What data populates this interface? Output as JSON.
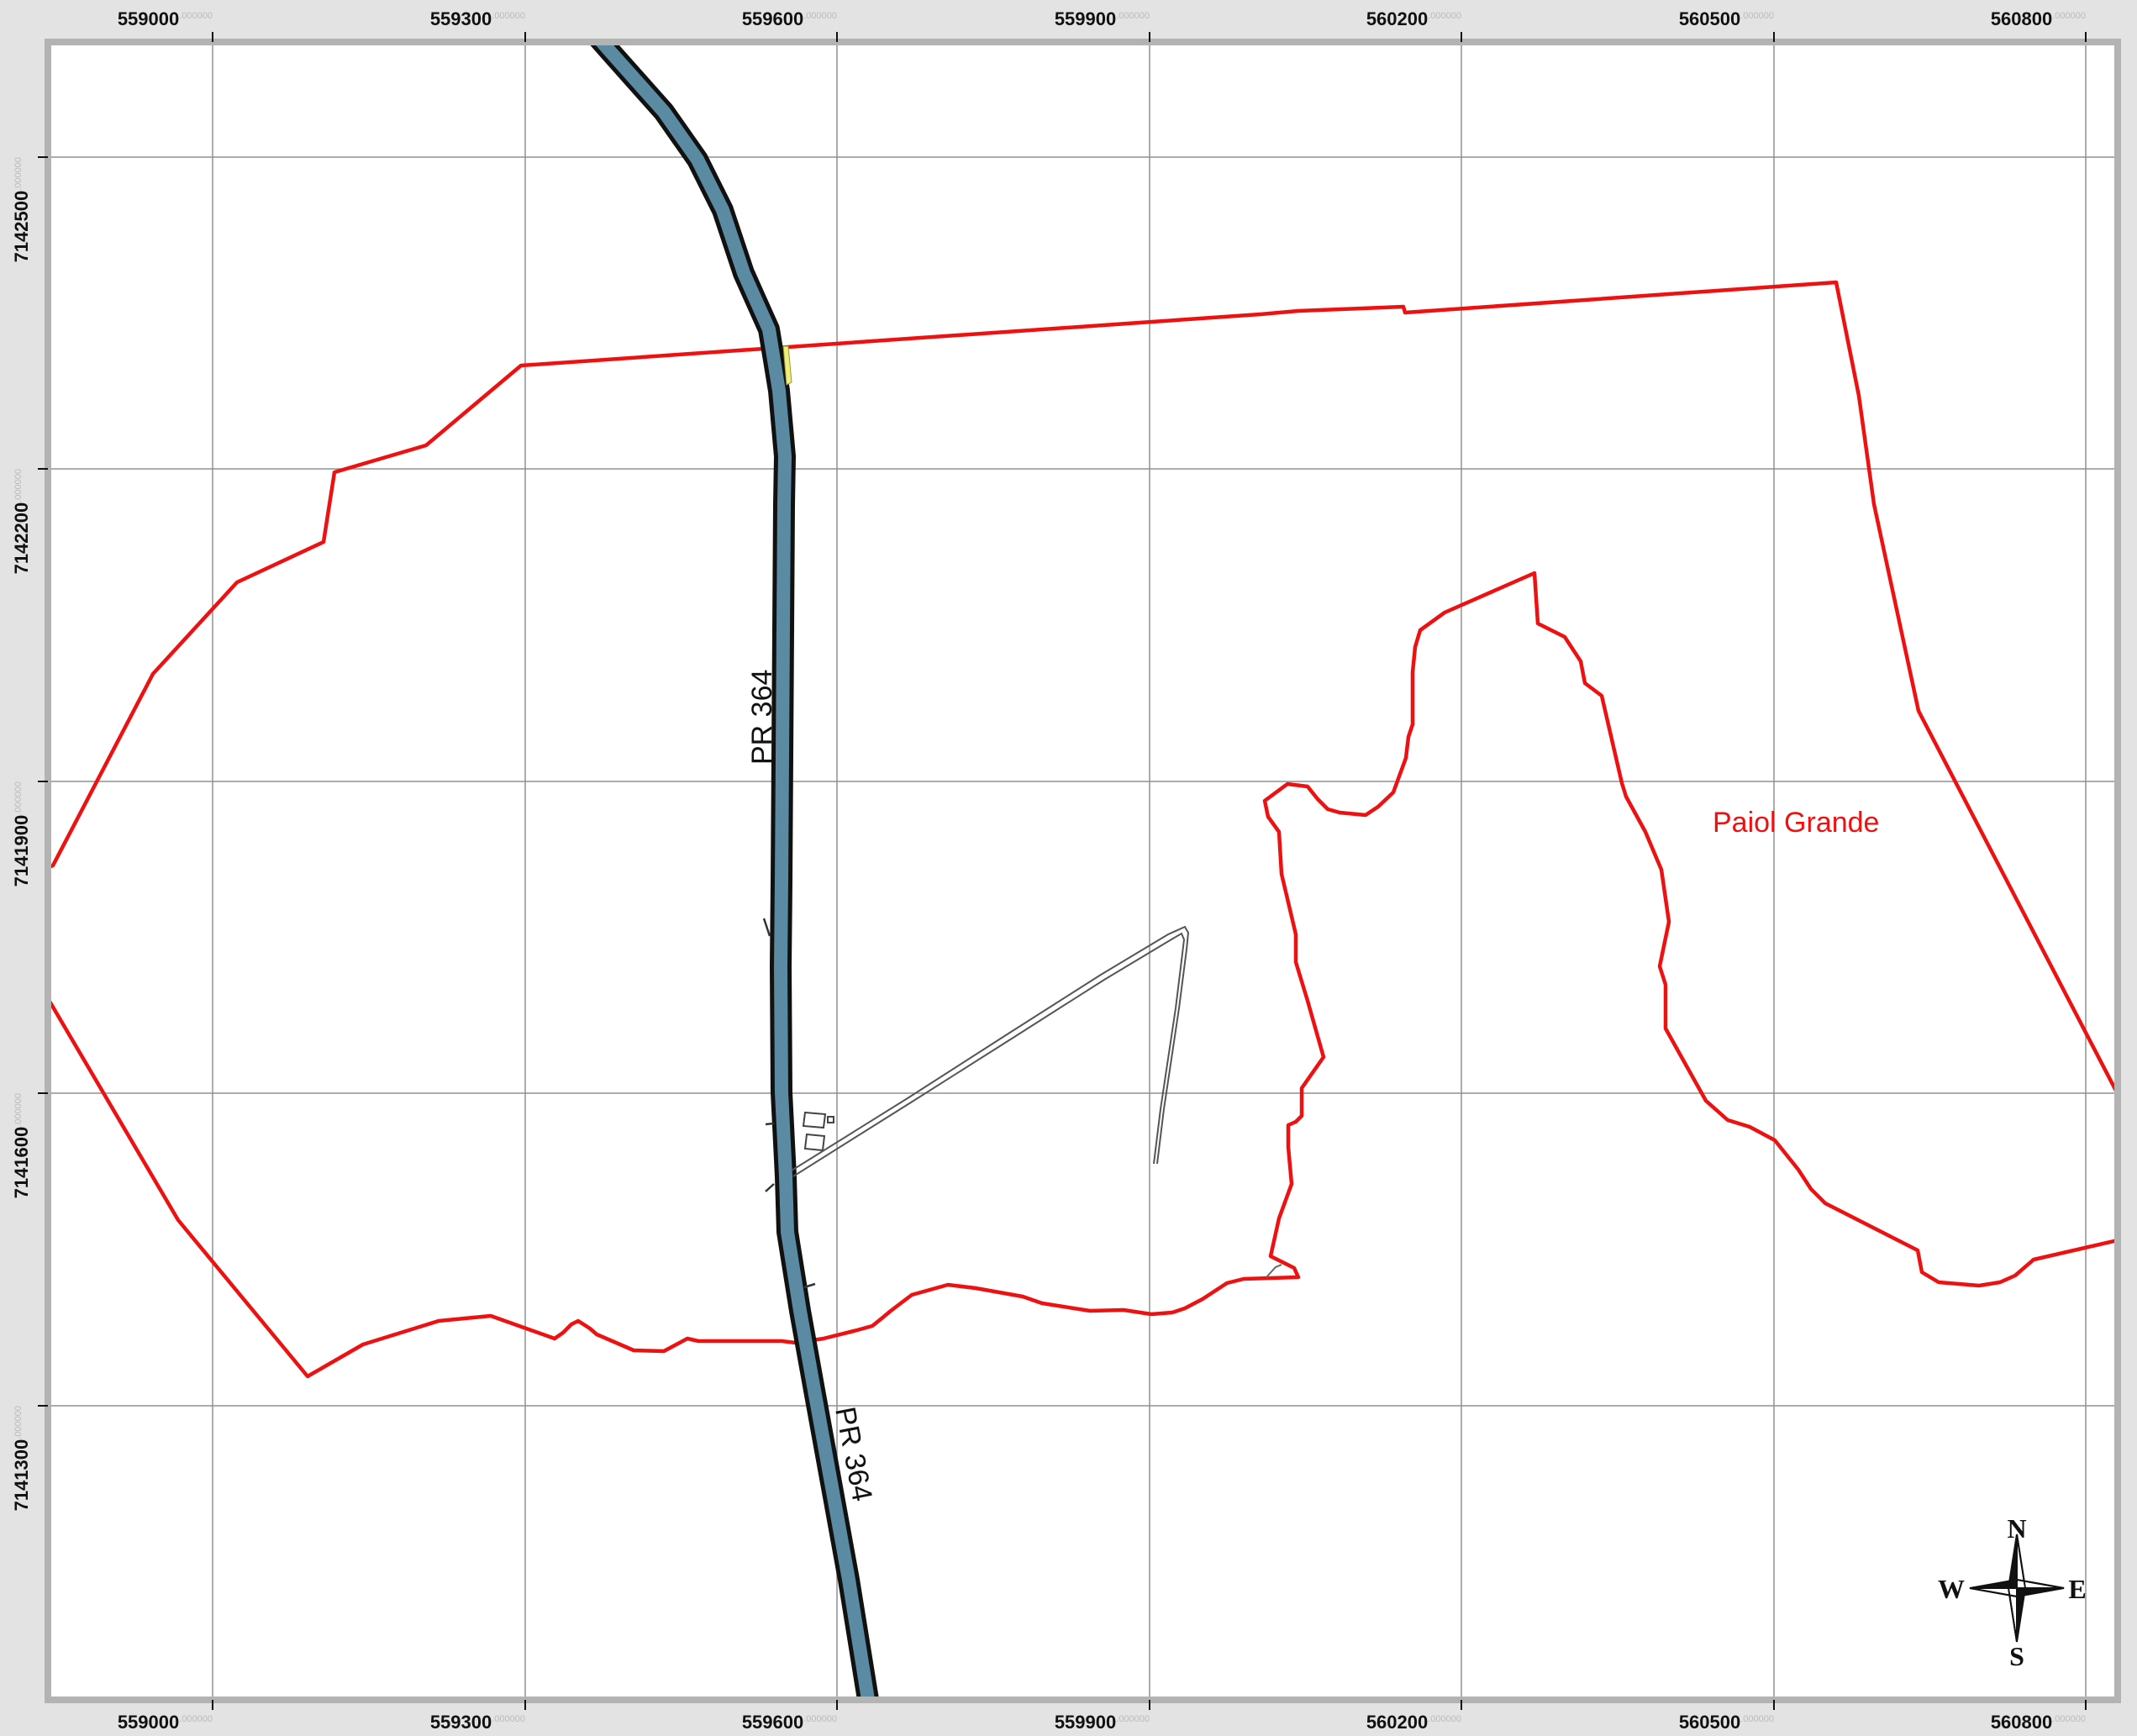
{
  "map": {
    "grid_x": [
      {
        "main": "559000",
        "dec": ".000000"
      },
      {
        "main": "559300",
        "dec": ".000000"
      },
      {
        "main": "559600",
        "dec": ".000000"
      },
      {
        "main": "559900",
        "dec": ".000000"
      },
      {
        "main": "560200",
        "dec": ".000000"
      },
      {
        "main": "560500",
        "dec": ".000000"
      },
      {
        "main": "560800",
        "dec": ".000000"
      }
    ],
    "grid_y": [
      {
        "main": "7142500",
        "dec": ".000000"
      },
      {
        "main": "7142200",
        "dec": ".000000"
      },
      {
        "main": "7141900",
        "dec": ".000000"
      },
      {
        "main": "7141600",
        "dec": ".000000"
      },
      {
        "main": "7141300",
        "dec": ".000000"
      }
    ],
    "road_label_north": "PR 364",
    "road_label_south": "PR 364",
    "area_label": "Paiol Grande",
    "compass": {
      "n": "N",
      "s": "S",
      "e": "E",
      "w": "W"
    },
    "colors": {
      "boundary": "#ee1111",
      "road_fill": "#5b8aa3",
      "road_casing": "#111111",
      "path": "#555555",
      "frame": "#b3b3b3",
      "background": "#e3e3e3"
    }
  }
}
